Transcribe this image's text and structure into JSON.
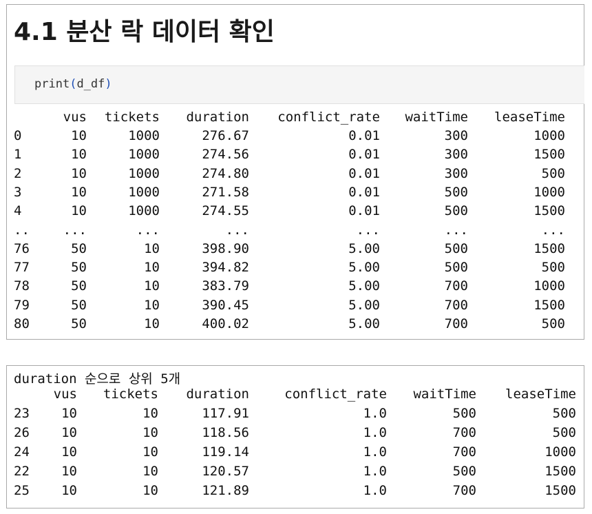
{
  "heading": "4.1 분산 락 데이터 확인",
  "code": {
    "fn": "print",
    "open": "(",
    "arg": "d_df",
    "close": ")"
  },
  "top_table": {
    "columns": [
      "vus",
      "tickets",
      "duration",
      "conflict_rate",
      "waitTime",
      "leaseTime"
    ],
    "rows": [
      [
        "0",
        "10",
        "1000",
        "276.67",
        "0.01",
        "300",
        "1000"
      ],
      [
        "1",
        "10",
        "1000",
        "274.56",
        "0.01",
        "300",
        "1500"
      ],
      [
        "2",
        "10",
        "1000",
        "274.80",
        "0.01",
        "300",
        "500"
      ],
      [
        "3",
        "10",
        "1000",
        "271.58",
        "0.01",
        "500",
        "1000"
      ],
      [
        "4",
        "10",
        "1000",
        "274.55",
        "0.01",
        "500",
        "1500"
      ],
      [
        "..",
        "...",
        "...",
        "...",
        "...",
        "...",
        "..."
      ],
      [
        "76",
        "50",
        "10",
        "398.90",
        "5.00",
        "500",
        "1500"
      ],
      [
        "77",
        "50",
        "10",
        "394.82",
        "5.00",
        "500",
        "500"
      ],
      [
        "78",
        "50",
        "10",
        "383.79",
        "5.00",
        "700",
        "1000"
      ],
      [
        "79",
        "50",
        "10",
        "390.45",
        "5.00",
        "700",
        "1500"
      ],
      [
        "80",
        "50",
        "10",
        "400.02",
        "5.00",
        "700",
        "500"
      ]
    ]
  },
  "bottom_table": {
    "caption": "duration 순으로 상위 5개",
    "columns": [
      "vus",
      "tickets",
      "duration",
      "conflict_rate",
      "waitTime",
      "leaseTime"
    ],
    "rows": [
      [
        "23",
        "10",
        "10",
        "117.91",
        "1.0",
        "500",
        "500"
      ],
      [
        "26",
        "10",
        "10",
        "118.56",
        "1.0",
        "700",
        "500"
      ],
      [
        "24",
        "10",
        "10",
        "119.14",
        "1.0",
        "700",
        "1000"
      ],
      [
        "22",
        "10",
        "10",
        "120.57",
        "1.0",
        "500",
        "1500"
      ],
      [
        "25",
        "10",
        "10",
        "121.89",
        "1.0",
        "700",
        "1500"
      ]
    ]
  }
}
